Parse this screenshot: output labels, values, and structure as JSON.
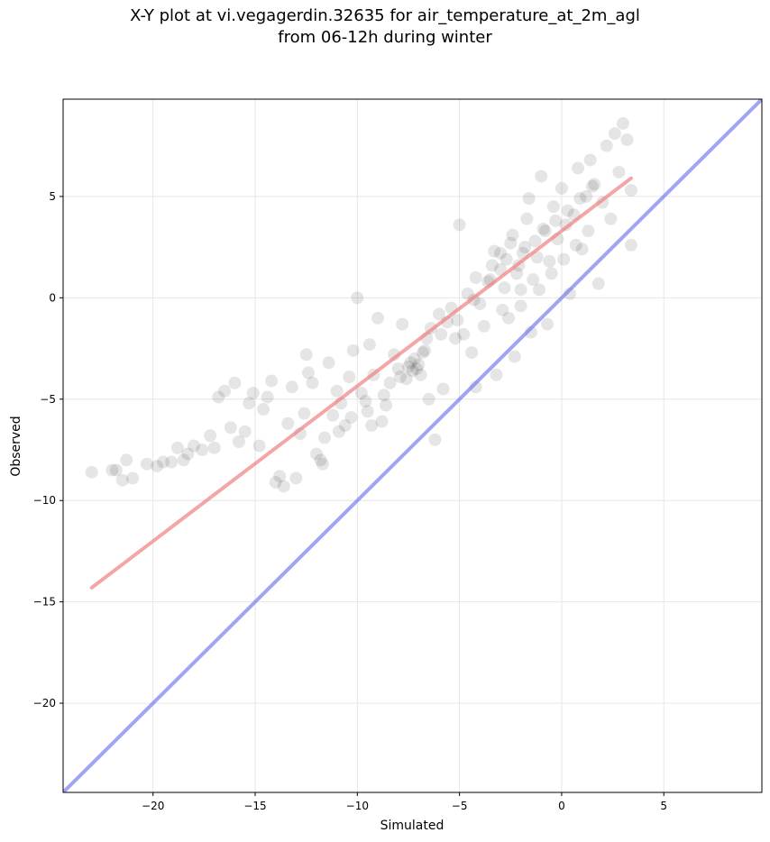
{
  "chart_data": {
    "type": "scatter",
    "title": "X-Y plot at vi.vegagerdin.32635 for air_temperature_at_2m_agl",
    "subtitle": "from 06-12h during winter",
    "xlabel": "Simulated",
    "ylabel": "Observed",
    "xlim": [
      -24.4,
      9.8
    ],
    "ylim": [
      -24.4,
      9.8
    ],
    "xticks": [
      -20,
      -15,
      -10,
      -5,
      0,
      5
    ],
    "yticks": [
      -20,
      -15,
      -10,
      -5,
      0,
      5
    ],
    "xtick_labels": [
      "−20",
      "−15",
      "−10",
      "−5",
      "0",
      "5"
    ],
    "ytick_labels": [
      "−20",
      "−15",
      "−10",
      "−5",
      "0",
      "5"
    ],
    "grid": true,
    "point_color": "#000000",
    "regression_color": "#f08080",
    "identity_color": "#6666ee",
    "regression_line": {
      "x": [
        -23.0,
        3.4
      ],
      "y": [
        -14.3,
        5.9
      ]
    },
    "identity_line": {
      "x": [
        -24.4,
        9.8
      ],
      "y": [
        -24.4,
        9.8
      ]
    },
    "points": [
      [
        -23.0,
        -8.6
      ],
      [
        -22.0,
        -8.5
      ],
      [
        -21.8,
        -8.5
      ],
      [
        -21.5,
        -9.0
      ],
      [
        -21.0,
        -8.9
      ],
      [
        -21.3,
        -8.0
      ],
      [
        -20.3,
        -8.2
      ],
      [
        -19.8,
        -8.3
      ],
      [
        -19.5,
        -8.1
      ],
      [
        -19.1,
        -8.1
      ],
      [
        -18.8,
        -7.4
      ],
      [
        -18.5,
        -8.0
      ],
      [
        -18.3,
        -7.7
      ],
      [
        -18.0,
        -7.3
      ],
      [
        -17.6,
        -7.5
      ],
      [
        -17.2,
        -6.8
      ],
      [
        -17.0,
        -7.4
      ],
      [
        -16.8,
        -4.9
      ],
      [
        -16.5,
        -4.6
      ],
      [
        -16.2,
        -6.4
      ],
      [
        -16.0,
        -4.2
      ],
      [
        -15.8,
        -7.1
      ],
      [
        -15.5,
        -6.6
      ],
      [
        -15.3,
        -5.2
      ],
      [
        -15.1,
        -4.7
      ],
      [
        -14.8,
        -7.3
      ],
      [
        -14.6,
        -5.5
      ],
      [
        -14.4,
        -4.9
      ],
      [
        -14.2,
        -4.1
      ],
      [
        -14.0,
        -9.1
      ],
      [
        -13.8,
        -8.8
      ],
      [
        -13.6,
        -9.3
      ],
      [
        -13.4,
        -6.2
      ],
      [
        -13.2,
        -4.4
      ],
      [
        -13.0,
        -8.9
      ],
      [
        -12.8,
        -6.7
      ],
      [
        -12.6,
        -5.7
      ],
      [
        -12.4,
        -3.7
      ],
      [
        -12.2,
        -4.2
      ],
      [
        -12.0,
        -7.7
      ],
      [
        -11.8,
        -8.0
      ],
      [
        -11.6,
        -6.9
      ],
      [
        -11.4,
        -3.2
      ],
      [
        -11.2,
        -5.8
      ],
      [
        -11.0,
        -4.6
      ],
      [
        -10.8,
        -5.2
      ],
      [
        -10.6,
        -6.3
      ],
      [
        -10.4,
        -3.9
      ],
      [
        -10.2,
        -2.6
      ],
      [
        -10.0,
        0.0
      ],
      [
        -9.8,
        -4.7
      ],
      [
        -9.6,
        -5.1
      ],
      [
        -9.4,
        -2.3
      ],
      [
        -9.2,
        -3.8
      ],
      [
        -9.0,
        -1.0
      ],
      [
        -8.8,
        -6.1
      ],
      [
        -8.6,
        -5.3
      ],
      [
        -8.4,
        -4.2
      ],
      [
        -8.2,
        -2.8
      ],
      [
        -8.0,
        -3.5
      ],
      [
        -7.8,
        -1.3
      ],
      [
        -7.6,
        -4.0
      ],
      [
        -7.5,
        -3.4
      ],
      [
        -7.4,
        -3.2
      ],
      [
        -7.3,
        -3.6
      ],
      [
        -7.2,
        -3.0
      ],
      [
        -7.1,
        -3.5
      ],
      [
        -7.0,
        -3.3
      ],
      [
        -6.9,
        -3.8
      ],
      [
        -6.8,
        -2.7
      ],
      [
        -6.6,
        -2.0
      ],
      [
        -6.5,
        -5.0
      ],
      [
        -6.4,
        -1.5
      ],
      [
        -6.2,
        -7.0
      ],
      [
        -6.0,
        -0.8
      ],
      [
        -5.8,
        -4.5
      ],
      [
        -5.6,
        -1.2
      ],
      [
        -5.4,
        -0.5
      ],
      [
        -5.2,
        -2.0
      ],
      [
        -5.0,
        3.6
      ],
      [
        -4.8,
        -1.8
      ],
      [
        -4.6,
        0.2
      ],
      [
        -4.4,
        -2.7
      ],
      [
        -4.2,
        1.0
      ],
      [
        -4.0,
        -0.3
      ],
      [
        -3.8,
        -1.4
      ],
      [
        -3.6,
        0.8
      ],
      [
        -3.4,
        1.6
      ],
      [
        -3.2,
        -3.8
      ],
      [
        -3.0,
        2.2
      ],
      [
        -2.8,
        0.5
      ],
      [
        -2.6,
        -1.0
      ],
      [
        -2.4,
        3.1
      ],
      [
        -2.2,
        1.2
      ],
      [
        -2.0,
        0.4
      ],
      [
        -1.8,
        2.5
      ],
      [
        -1.6,
        4.9
      ],
      [
        -1.4,
        0.9
      ],
      [
        -1.2,
        2.0
      ],
      [
        -1.0,
        6.0
      ],
      [
        -0.8,
        3.3
      ],
      [
        -0.6,
        1.8
      ],
      [
        -0.4,
        4.5
      ],
      [
        -0.2,
        2.9
      ],
      [
        0.0,
        5.4
      ],
      [
        0.2,
        3.6
      ],
      [
        0.4,
        0.2
      ],
      [
        0.6,
        4.1
      ],
      [
        0.8,
        6.4
      ],
      [
        1.0,
        2.4
      ],
      [
        1.2,
        5.0
      ],
      [
        1.4,
        6.8
      ],
      [
        1.6,
        5.6
      ],
      [
        1.8,
        0.7
      ],
      [
        2.0,
        4.7
      ],
      [
        2.2,
        7.5
      ],
      [
        2.4,
        3.9
      ],
      [
        2.6,
        8.1
      ],
      [
        2.8,
        6.2
      ],
      [
        3.0,
        8.6
      ],
      [
        3.2,
        7.8
      ],
      [
        3.4,
        2.6
      ],
      [
        3.4,
        5.3
      ],
      [
        -1.5,
        -1.7
      ],
      [
        -0.7,
        -1.3
      ],
      [
        -2.3,
        -2.9
      ],
      [
        -4.2,
        -4.4
      ],
      [
        -9.3,
        -6.3
      ],
      [
        -11.7,
        -8.2
      ],
      [
        -12.5,
        -2.8
      ],
      [
        -3.0,
        1.4
      ],
      [
        -2.7,
        1.9
      ],
      [
        -2.1,
        1.6
      ],
      [
        -1.9,
        2.2
      ],
      [
        -1.3,
        2.8
      ],
      [
        -0.9,
        3.4
      ],
      [
        -0.3,
        3.8
      ],
      [
        0.3,
        4.3
      ],
      [
        0.9,
        4.9
      ],
      [
        1.5,
        5.5
      ],
      [
        -3.5,
        0.9
      ],
      [
        -4.3,
        -0.1
      ],
      [
        -5.1,
        -1.1
      ],
      [
        -5.9,
        -1.8
      ],
      [
        -6.7,
        -2.6
      ],
      [
        -7.9,
        -3.9
      ],
      [
        -8.7,
        -4.8
      ],
      [
        -9.5,
        -5.6
      ],
      [
        -10.3,
        -5.9
      ],
      [
        -10.9,
        -6.6
      ],
      [
        -2.9,
        -0.6
      ],
      [
        -2.0,
        -0.4
      ],
      [
        -1.1,
        0.4
      ],
      [
        -0.5,
        1.2
      ],
      [
        0.1,
        1.9
      ],
      [
        0.7,
        2.6
      ],
      [
        1.3,
        3.3
      ],
      [
        -1.7,
        3.9
      ],
      [
        -2.5,
        2.7
      ],
      [
        -3.3,
        2.3
      ]
    ]
  }
}
